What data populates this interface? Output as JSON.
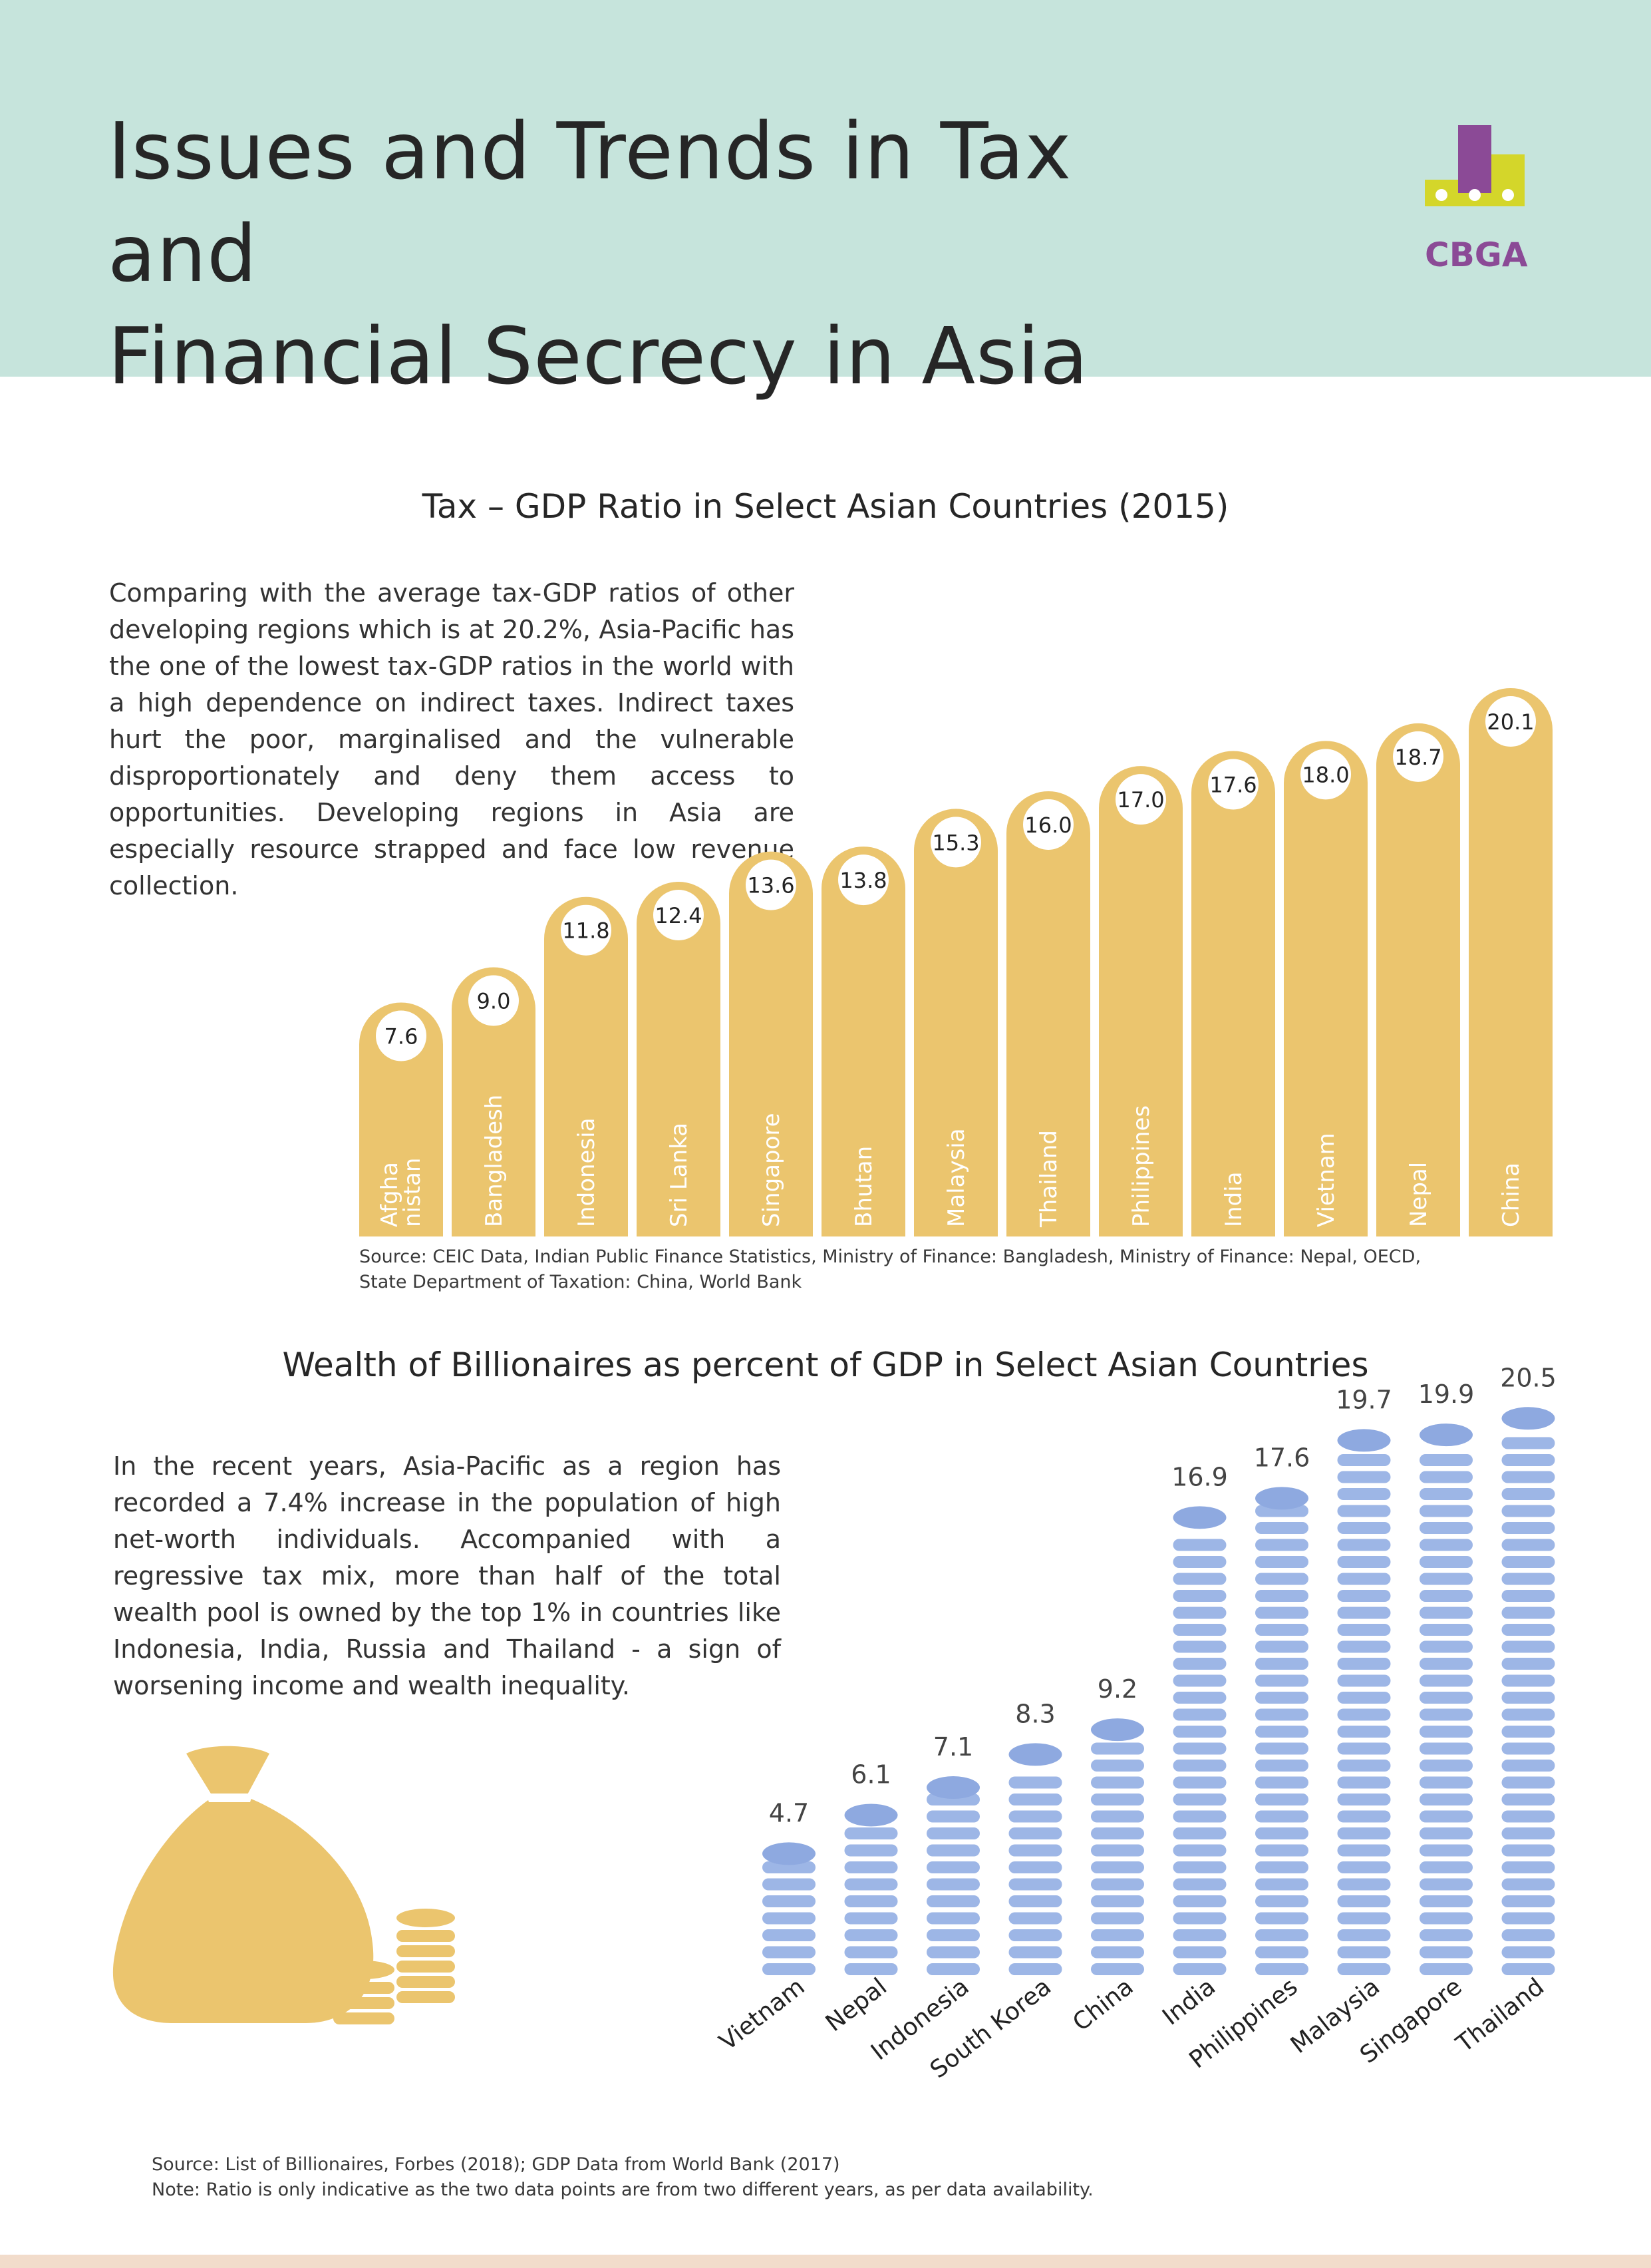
{
  "header": {
    "title_line1": "Issues and Trends in Tax and",
    "title_line2": "Financial Secrecy in Asia",
    "logo_text": "CBGA"
  },
  "colors": {
    "header_bg": "#c6e4dc",
    "tax_bar": "#ebc56e",
    "coin": "#9db6e6",
    "coin_top": "#8ea9e0",
    "logo_purple": "#8b4a96",
    "logo_yellow": "#d4d62a"
  },
  "tax_section": {
    "title": "Tax – GDP Ratio in Select Asian Countries (2015)",
    "paragraph": "Comparing with the average tax-GDP ratios of other developing regions which is at 20.2%, Asia-Pacific has the one of the lowest tax-GDP ratios in the world with a high dependence on indirect taxes. Indirect taxes hurt the poor, marginalised and the vulnerable disproportionately and deny them access to opportunities. Developing regions in Asia are especially resource strapped and face low revenue collection.",
    "source_line1": "Source: CEIC Data, Indian Public Finance Statistics, Ministry of Finance: Bangladesh, Ministry of Finance: Nepal, OECD,",
    "source_line2": "State Department of Taxation: China, World Bank"
  },
  "wealth_section": {
    "title": "Wealth of Billionaires as percent of GDP in Select Asian Countries",
    "paragraph": "In the recent years, Asia-Pacific as a region has recorded a 7.4% increase in the population of high net-worth individuals. Accompanied with a regressive tax mix, more than half of the total wealth pool is owned by the top 1% in countries like Indonesia, India, Russia and Thailand - a sign of worsening income and wealth inequality.",
    "source_line1": "Source: List of Billionaires, Forbes (2018); GDP Data from World Bank (2017)",
    "source_line2": "Note: Ratio is only indicative as the two data points are from two different years, as per data availability."
  },
  "chart_data": [
    {
      "type": "bar",
      "title": "Tax – GDP Ratio in Select Asian Countries (2015)",
      "categories": [
        "Afgha nistan",
        "Bangladesh",
        "Indonesia",
        "Sri Lanka",
        "Singapore",
        "Bhutan",
        "Malaysia",
        "Thailand",
        "Philippines",
        "India",
        "Vietnam",
        "Nepal",
        "China"
      ],
      "values": [
        7.6,
        9.0,
        11.8,
        12.4,
        13.6,
        13.8,
        15.3,
        16.0,
        17.0,
        17.6,
        18.0,
        18.7,
        20.1
      ],
      "value_labels": [
        "7.6",
        "9.0",
        "11.8",
        "12.4",
        "13.6",
        "13.8",
        "15.3",
        "16.0",
        "17.0",
        "17.6",
        "18.0",
        "18.7",
        "20.1"
      ]
    },
    {
      "type": "bar",
      "title": "Wealth of Billionaires as percent of GDP in Select Asian Countries",
      "categories": [
        "Vietnam",
        "Nepal",
        "Indonesia",
        "South Korea",
        "China",
        "India",
        "Philippines",
        "Malaysia",
        "Singapore",
        "Thailand"
      ],
      "values": [
        4.7,
        6.1,
        7.1,
        8.3,
        9.2,
        16.9,
        17.6,
        19.7,
        19.9,
        20.5
      ],
      "value_labels": [
        "4.7",
        "6.1",
        "7.1",
        "8.3",
        "9.2",
        "16.9",
        "17.6",
        "19.7",
        "19.9",
        "20.5"
      ]
    }
  ]
}
